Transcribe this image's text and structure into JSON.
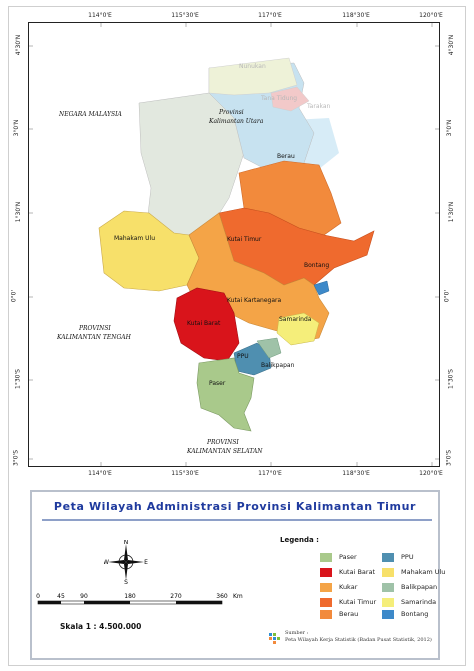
{
  "map": {
    "top_ticks": [
      "114°0'E",
      "115°30'E",
      "117°0'E",
      "118°30'E",
      "120°0'E"
    ],
    "bottom_ticks": [
      "114°0'E",
      "115°30'E",
      "117°0'E",
      "118°30'E",
      "120°0'E"
    ],
    "left_ticks": [
      "4°30'N",
      "3°0'N",
      "1°30'N",
      "0°0'",
      "1°30'S",
      "3°0'S"
    ],
    "right_ticks": [
      "4°30'N",
      "3°0'N",
      "1°30'N",
      "0°0'",
      "1°30'S",
      "3°0'S"
    ],
    "context_labels": {
      "malaysia": "NEGARA MALAYSIA",
      "kaltara_1": "Provinsi",
      "kaltara_2": "Kalimantan Utara",
      "kalteng_1": "PROVINSI",
      "kalteng_2": "KALIMANTAN TENGAH",
      "kalsel_1": "PROVINSI",
      "kalsel_2": "KALIMANTAN SELATAN",
      "nunukan": "Nunukan",
      "tana_tidung": "Tana Tidung",
      "tarakan": "Tarakan"
    },
    "region_labels": {
      "berau": "Berau",
      "mahakam_ulu": "Mahakam Ulu",
      "kutai_timur": "Kutai Timur",
      "bontang": "Bontang",
      "kutai_kartanegara": "Kutai Kartanegara",
      "samarinda": "Samarinda",
      "kutai_barat": "Kutai Barat",
      "ppu": "PPU",
      "balikpapan": "Balikpapan",
      "paser": "Paser"
    },
    "colors": {
      "paser": "#a9c98b",
      "kutai_barat": "#d9141b",
      "kukar": "#f4a447",
      "kutai_timur": "#ef6a2e",
      "berau": "#f28a3c",
      "ppu": "#4f8fb0",
      "mahakam_ulu": "#f7e06a",
      "balikpapan": "#9fc2a8",
      "samarinda": "#f5ee7a",
      "bontang": "#3d89c9",
      "malaysia": "#e2e8df",
      "kaltara": "#c7e2f0",
      "nunukan": "#eef2d8",
      "tana_tidung": "#f2c9c9",
      "sea": "#d7ecf7"
    }
  },
  "legend": {
    "title": "Peta Wilayah Administrasi Provinsi Kalimantan Timur",
    "heading": "Legenda :",
    "items": [
      {
        "label": "Paser",
        "color": "#a9c98b"
      },
      {
        "label": "Kutai Barat",
        "color": "#d9141b"
      },
      {
        "label": "Kukar",
        "color": "#f4a447"
      },
      {
        "label": "Kutai Timur",
        "color": "#ef6a2e"
      },
      {
        "label": "Berau",
        "color": "#f28a3c"
      },
      {
        "label": "PPU",
        "color": "#4f8fb0"
      },
      {
        "label": "Mahakam Ulu",
        "color": "#f7e06a"
      },
      {
        "label": "Balikpapan",
        "color": "#9fc2a8"
      },
      {
        "label": "Samarinda",
        "color": "#f5ee7a"
      },
      {
        "label": "Bontang",
        "color": "#3d89c9"
      }
    ],
    "compass": {
      "n": "N",
      "s": "S",
      "e": "E",
      "w": "W"
    },
    "scale_ticks": [
      "0",
      "45",
      "90",
      "180",
      "270",
      "360"
    ],
    "scale_unit": "Km",
    "scale_text": "Skala 1 : 4.500.000",
    "source_1": "Sumber :",
    "source_2": "Peta Wilayah Kerja Statistik (Badan Pusat Statistik, 2012)"
  }
}
